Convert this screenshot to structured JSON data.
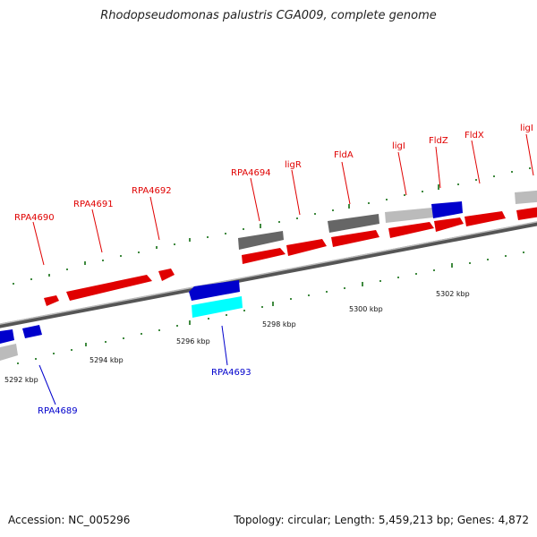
{
  "header": {
    "title": "Rhodopseudomonas palustris CGA009, complete genome"
  },
  "footer": {
    "accession": "Accession: NC_005296",
    "summary": "Topology: circular; Length: 5,459,213 bp; Genes: 4,872"
  },
  "colors": {
    "red": "#e00000",
    "blue": "#0000cc",
    "cyan": "#00ffff",
    "gray": "#555555",
    "lightgray": "#bbbbbb",
    "backbone": "#777777"
  },
  "genes_top": [
    "RPA4690",
    "RPA4691",
    "RPA4692",
    "RPA4694",
    "ligR",
    "FldA",
    "ligI",
    "FldZ",
    "FldX",
    "ligI"
  ],
  "genes_bottom": [
    "RPA4689",
    "RPA4693"
  ],
  "ticks": [
    "5292 kbp",
    "5294 kbp",
    "5296 kbp",
    "5298 kbp",
    "5300 kbp",
    "5302 kbp"
  ]
}
